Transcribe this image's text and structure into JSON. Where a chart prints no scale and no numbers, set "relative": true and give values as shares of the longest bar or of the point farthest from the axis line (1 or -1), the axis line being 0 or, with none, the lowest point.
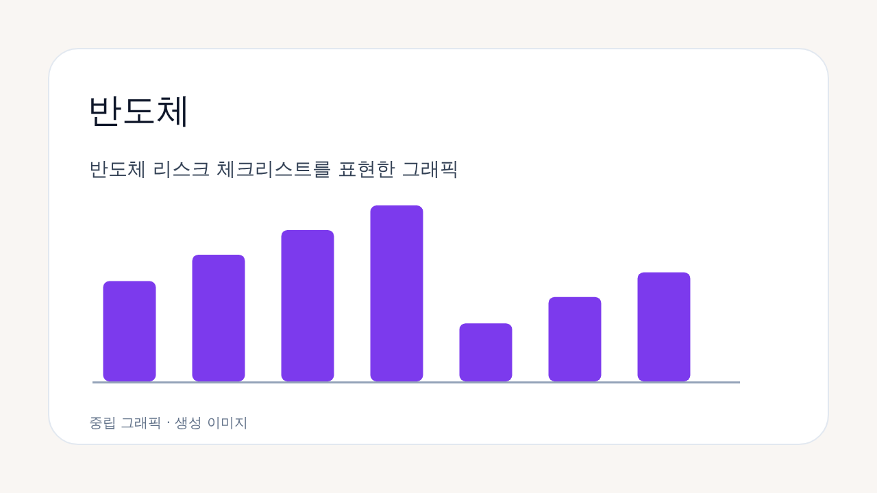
{
  "chart_data": {
    "type": "bar",
    "title": "반도체",
    "subtitle": "반도체 리스크 체크리스트를 표현한 그래픽",
    "categories": [
      null,
      null,
      null,
      null,
      null,
      null,
      null
    ],
    "values": [
      0.57,
      0.72,
      0.86,
      1,
      0.33,
      0.48,
      0.62
    ],
    "color": "#7c3aed",
    "relative": true,
    "grid": false,
    "legend": false,
    "annotations": [
      "중립 그래픽 · 생성 이미지"
    ]
  }
}
